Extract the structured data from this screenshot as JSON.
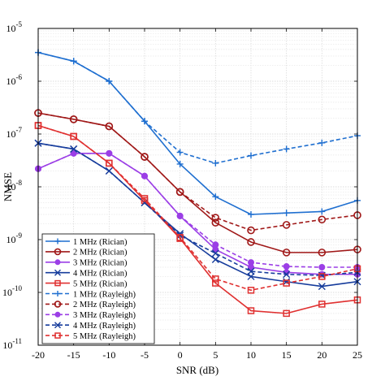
{
  "chart_data": {
    "type": "line",
    "xlabel": "SNR (dB)",
    "ylabel": "NMSE",
    "x": [
      -20,
      -15,
      -10,
      -5,
      0,
      5,
      10,
      15,
      20,
      25
    ],
    "xlim": [
      -20,
      25
    ],
    "ylim_exponent": [
      -11,
      -5
    ],
    "yscale": "log",
    "grid": true,
    "legend_position": "bottom-left",
    "x_tick_labels": [
      "-20",
      "-15",
      "-10",
      "-5",
      "0",
      "5",
      "10",
      "15",
      "20",
      "25"
    ],
    "y_tick_exponents": [
      "-11",
      "-10",
      "-9",
      "-8",
      "-7",
      "-6",
      "-5"
    ],
    "y_tick_base": "10",
    "series": [
      {
        "name": "1 MHz (Rician)",
        "color": "#1f6fd0",
        "marker": "plus",
        "dash": false,
        "values": [
          3.5e-06,
          2.4e-06,
          1e-06,
          1.75e-07,
          2.7e-08,
          6.5e-09,
          3e-09,
          3.2e-09,
          3.4e-09,
          5.5e-09
        ]
      },
      {
        "name": "2 MHz (Rician)",
        "color": "#a01818",
        "marker": "circle",
        "dash": false,
        "values": [
          2.5e-07,
          1.9e-07,
          1.4e-07,
          3.7e-08,
          8e-09,
          2.1e-09,
          9e-10,
          5.7e-10,
          5.7e-10,
          6.5e-10
        ]
      },
      {
        "name": "3 MHz (Rician)",
        "color": "#9b3ee6",
        "marker": "dot",
        "dash": false,
        "values": [
          2.2e-08,
          4.3e-08,
          4.3e-08,
          1.6e-08,
          2.8e-09,
          6.5e-10,
          3e-10,
          2.4e-10,
          2.2e-10,
          2.2e-10
        ]
      },
      {
        "name": "4 MHz (Rician)",
        "color": "#163c9c",
        "marker": "x",
        "dash": false,
        "values": [
          6.7e-08,
          5.2e-08,
          2e-08,
          5e-09,
          1.3e-09,
          4.2e-10,
          2e-10,
          1.6e-10,
          1.3e-10,
          1.6e-10
        ]
      },
      {
        "name": "5 MHz (Rician)",
        "color": "#e03030",
        "marker": "square",
        "dash": false,
        "values": [
          1.45e-07,
          9e-08,
          2.8e-08,
          5.5e-09,
          1.05e-09,
          1.5e-10,
          4.5e-11,
          4e-11,
          6e-11,
          7.2e-11
        ]
      },
      {
        "name": "1 MHz (Rayleigh)",
        "color": "#1f6fd0",
        "marker": "plus",
        "dash": true,
        "values": [
          3.5e-06,
          2.4e-06,
          1e-06,
          1.75e-07,
          4.5e-08,
          2.8e-08,
          3.9e-08,
          5.2e-08,
          6.8e-08,
          9.3e-08
        ]
      },
      {
        "name": "2 MHz (Rayleigh)",
        "color": "#a01818",
        "marker": "circle",
        "dash": true,
        "values": [
          2.5e-07,
          1.9e-07,
          1.4e-07,
          3.7e-08,
          8e-09,
          2.6e-09,
          1.5e-09,
          1.9e-09,
          2.4e-09,
          2.9e-09
        ]
      },
      {
        "name": "3 MHz (Rayleigh)",
        "color": "#9b3ee6",
        "marker": "dot",
        "dash": true,
        "values": [
          2.2e-08,
          4.3e-08,
          4.3e-08,
          1.6e-08,
          2.8e-09,
          8e-10,
          3.7e-10,
          3.1e-10,
          3e-10,
          3e-10
        ]
      },
      {
        "name": "4 MHz (Rayleigh)",
        "color": "#163c9c",
        "marker": "x",
        "dash": true,
        "values": [
          6.7e-08,
          5.2e-08,
          2e-08,
          5e-09,
          1.2e-09,
          5.5e-10,
          2.5e-10,
          2.2e-10,
          2.1e-10,
          2.4e-10
        ]
      },
      {
        "name": "5 MHz (Rayleigh)",
        "color": "#e03030",
        "marker": "square",
        "dash": true,
        "values": [
          1.45e-07,
          9e-08,
          2.8e-08,
          6e-09,
          1.1e-09,
          1.8e-10,
          1.1e-10,
          1.5e-10,
          2e-10,
          2.8e-10
        ]
      }
    ]
  }
}
